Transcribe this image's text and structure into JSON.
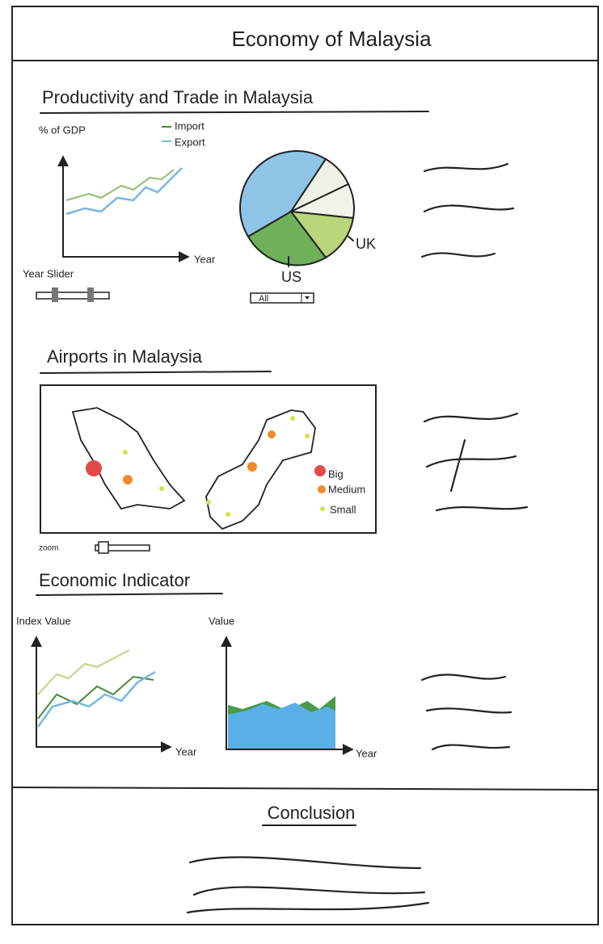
{
  "header": {
    "title": "Economy of Malaysia"
  },
  "productivity": {
    "title": "Productivity and Trade in Malaysia",
    "line_chart": {
      "y_label": "% of GDP",
      "x_label": "Year",
      "legend": [
        "Import",
        "Export"
      ],
      "slider_label": "Year Slider"
    },
    "pie_chart": {
      "labels": [
        "UK",
        "US"
      ],
      "dropdown": "All"
    }
  },
  "airports": {
    "title": "Airports in Malaysia",
    "legend": [
      "Big",
      "Medium",
      "Small"
    ],
    "zoom_label": "zoom"
  },
  "indicator": {
    "title": "Economic Indicator",
    "line_chart": {
      "y_label": "Index Value",
      "x_label": "Year"
    },
    "area_chart": {
      "y_label": "Value",
      "x_label": "Year"
    }
  },
  "conclusion": {
    "title": "Conclusion"
  }
}
